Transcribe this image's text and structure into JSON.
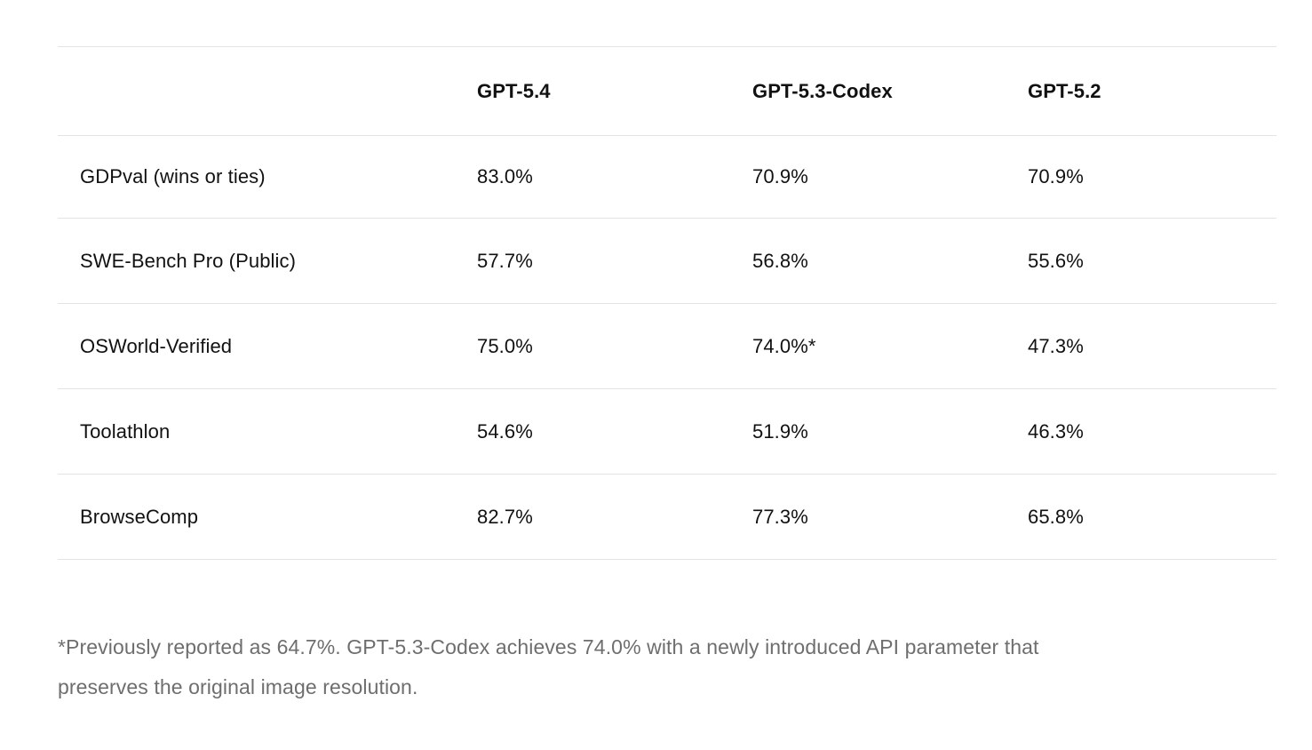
{
  "table": {
    "columns": [
      "GPT-5.4",
      "GPT-5.3-Codex",
      "GPT-5.2"
    ],
    "rows": [
      {
        "label": "GDPval (wins or ties)",
        "values": [
          "83.0%",
          "70.9%",
          "70.9%"
        ]
      },
      {
        "label": "SWE-Bench Pro (Public)",
        "values": [
          "57.7%",
          "56.8%",
          "55.6%"
        ]
      },
      {
        "label": "OSWorld-Verified",
        "values": [
          "75.0%",
          "74.0%*",
          "47.3%"
        ]
      },
      {
        "label": "Toolathlon",
        "values": [
          "54.6%",
          "51.9%",
          "46.3%"
        ]
      },
      {
        "label": "BrowseComp",
        "values": [
          "82.7%",
          "77.3%",
          "65.8%"
        ]
      }
    ]
  },
  "footnote": {
    "lines": [
      "*Previously reported as 64.7%. GPT-5.3-Codex achieves 74.0% with a newly introduced API parameter that",
      "preserves the original image resolution."
    ]
  },
  "colors": {
    "background": "#ffffff",
    "text": "#111111",
    "divider": "#e3e3e3",
    "footnote_text": "#6e6e6e"
  }
}
